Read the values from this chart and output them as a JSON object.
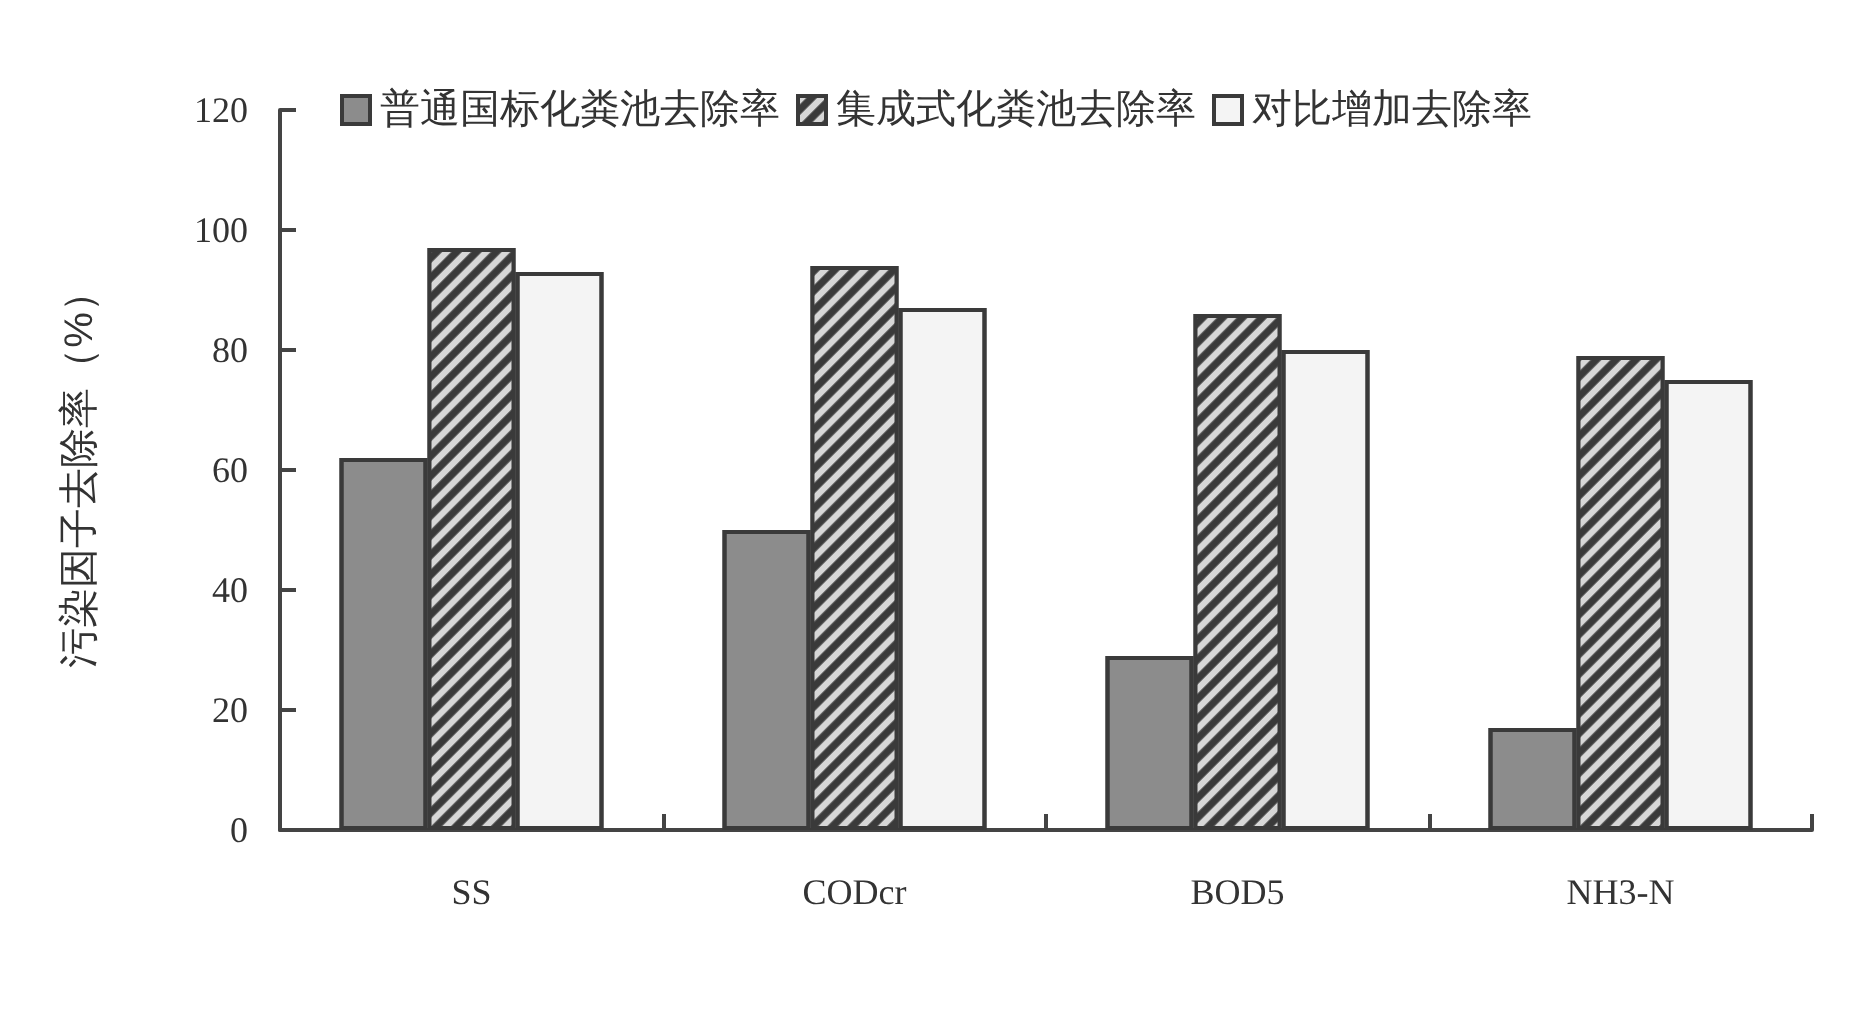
{
  "chart_data": {
    "type": "bar",
    "ylabel": "污染因子去除率（%）",
    "categories": [
      "SS",
      "CODcr",
      "BOD5",
      "NH3-N"
    ],
    "series": [
      {
        "name": "普通国标化粪池去除率",
        "color": "#8c8c8c",
        "values": [
          62,
          50,
          29,
          17
        ]
      },
      {
        "name": "集成式化粪池去除率",
        "color": "#3a3a3a",
        "values": [
          97,
          94,
          86,
          79
        ]
      },
      {
        "name": "对比增加去除率",
        "color": "#f4f4f4",
        "values": [
          93,
          87,
          80,
          75
        ]
      }
    ],
    "ylim": [
      0,
      120
    ],
    "yticks": [
      0,
      20,
      40,
      60,
      80,
      100,
      120
    ],
    "grid": false,
    "legend": "top"
  }
}
